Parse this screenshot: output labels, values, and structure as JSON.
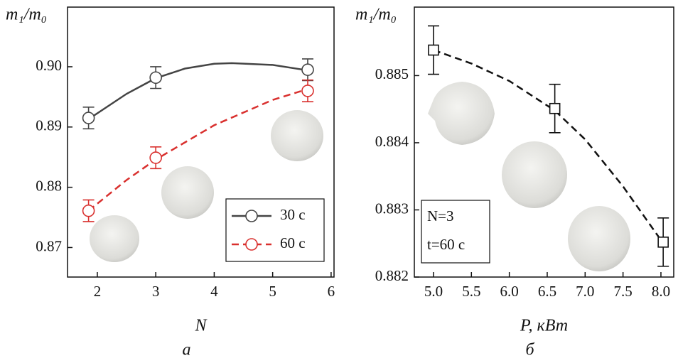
{
  "chart_data": [
    {
      "type": "scatter",
      "ylabel": "m₁/m₀",
      "xlabel": "N",
      "panel": "а",
      "xlim": [
        1.49,
        6.05
      ],
      "xticks": [
        2,
        3,
        4,
        5,
        6
      ],
      "ylim": [
        0.8651,
        0.9099
      ],
      "yticks": [
        0.87,
        0.88,
        0.89,
        {
          "value": 0.9,
          "label": "0.90"
        }
      ],
      "legend": "lower right",
      "marker": "circle",
      "series": [
        {
          "name": "30 с",
          "color": "#444444",
          "dash": false,
          "x": [
            1.85,
            3,
            5.6
          ],
          "values": [
            0.8915,
            0.8982,
            0.8995
          ],
          "errors": [
            0.0018,
            0.0018,
            0.0018
          ],
          "fit_x": [
            1.85,
            2.5,
            3,
            3.5,
            4,
            4.3,
            5,
            5.6
          ],
          "fit_values": [
            0.8913,
            0.8955,
            0.8981,
            0.8997,
            0.9005,
            0.9006,
            0.9003,
            0.8994
          ]
        },
        {
          "name": "60 с",
          "color": "#d9302e",
          "dash": true,
          "x": [
            1.85,
            3,
            5.6
          ],
          "values": [
            0.8761,
            0.8849,
            0.896
          ],
          "errors": [
            0.0018,
            0.0018,
            0.0018
          ],
          "fit_x": [
            1.85,
            2.5,
            3,
            4,
            5,
            5.6
          ],
          "fit_values": [
            0.8761,
            0.8812,
            0.8846,
            0.8903,
            0.8945,
            0.8963
          ]
        }
      ]
    },
    {
      "type": "scatter",
      "ylabel": "m₁/m₀",
      "xlabel": "P, кВт",
      "panel": "б",
      "xlim": [
        4.747,
        8.169
      ],
      "xticks": [
        {
          "value": 5,
          "label": "5.0"
        },
        5.5,
        {
          "value": 6,
          "label": "6.0"
        },
        6.5,
        {
          "value": 7,
          "label": "7.0"
        },
        7.5,
        {
          "value": 8,
          "label": "8.0"
        }
      ],
      "ylim": [
        0.882,
        0.88602
      ],
      "yticks": [
        0.882,
        0.883,
        0.884,
        0.885
      ],
      "marker": "square",
      "annotations": [
        "N=3",
        "t=60 с"
      ],
      "series": [
        {
          "color": "#111111",
          "dash": true,
          "x": [
            5,
            6.6,
            8.03
          ],
          "values": [
            0.88538,
            0.88451,
            0.88252
          ],
          "errors": [
            0.00036,
            0.00036,
            0.00036
          ],
          "fit_x": [
            5,
            5.5,
            6,
            6.6,
            7,
            7.5,
            8
          ],
          "fit_values": [
            0.88538,
            0.88518,
            0.88492,
            0.88448,
            0.88405,
            0.88335,
            0.88255
          ]
        }
      ]
    }
  ]
}
